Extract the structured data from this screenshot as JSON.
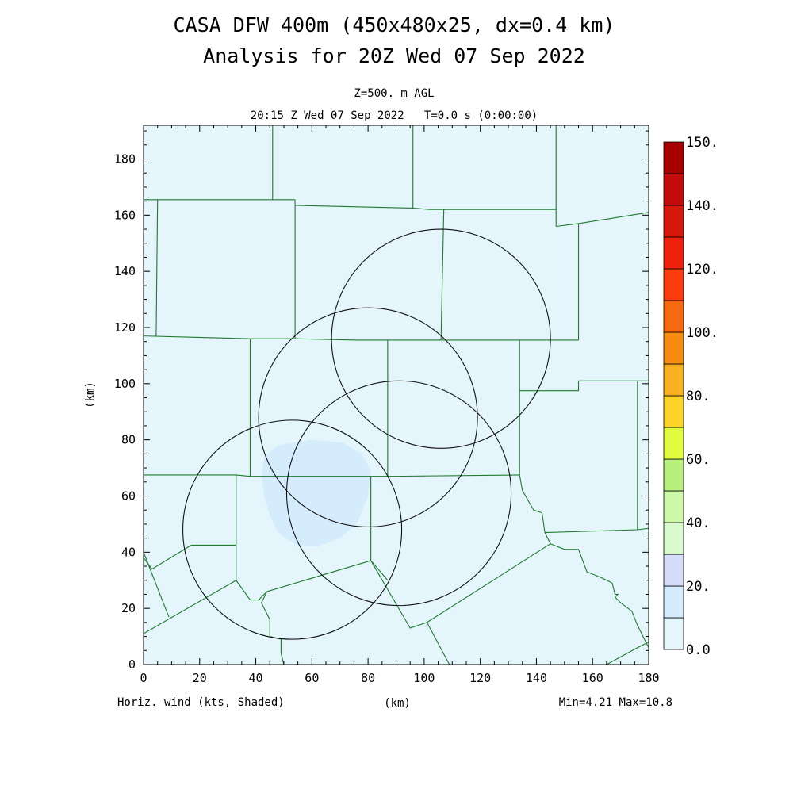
{
  "title": {
    "line1": "CASA DFW 400m (450x480x25, dx=0.4 km)",
    "line2": "Analysis for 20Z Wed 07 Sep 2022"
  },
  "subtitle": {
    "level": "Z=500. m AGL",
    "time": "20:15 Z Wed 07 Sep 2022   T=0.0 s (0:00:00)"
  },
  "footer": {
    "field": "Horiz. wind (kts, Shaded)",
    "xunits": "(km)",
    "minmax": "Min=4.21 Max=10.8"
  },
  "chart_data": {
    "type": "heatmap",
    "xlabel": "(km)",
    "ylabel": "(km)",
    "xlim": [
      0,
      180
    ],
    "ylim": [
      0,
      192
    ],
    "xticks": [
      0,
      20,
      40,
      60,
      80,
      100,
      120,
      140,
      160,
      180
    ],
    "yticks": [
      0,
      20,
      40,
      60,
      80,
      100,
      120,
      140,
      160,
      180
    ],
    "field": "Horiz. wind (kts)",
    "min": 4.21,
    "max": 10.8,
    "colorbar": {
      "range": [
        0,
        150
      ],
      "labels": [
        "0.0",
        "20.",
        "40.",
        "60.",
        "80.",
        "100.",
        "120.",
        "140.",
        "150."
      ],
      "colors": [
        "#e4f6fc",
        "#d4ecfc",
        "#d4dcfa",
        "#d8facc",
        "#ccf8a8",
        "#b8f080",
        "#e0fc3c",
        "#fcd428",
        "#f8b020",
        "#f88c10",
        "#f86810",
        "#fc3c0c",
        "#f0200c",
        "#d8180c",
        "#c40c0c",
        "#a80000"
      ]
    },
    "shaded_region": {
      "level": "10-20 kts",
      "color": "#d4ecfc",
      "polygon_km": [
        [
          43,
          74
        ],
        [
          48,
          78
        ],
        [
          60,
          80
        ],
        [
          71,
          79
        ],
        [
          78,
          75
        ],
        [
          81,
          69
        ],
        [
          80,
          60
        ],
        [
          76,
          50
        ],
        [
          70,
          45
        ],
        [
          62,
          42
        ],
        [
          55,
          42
        ],
        [
          48,
          47
        ],
        [
          45,
          53
        ],
        [
          43,
          60
        ],
        [
          42,
          67
        ]
      ]
    },
    "radar_range_rings": [
      {
        "center": [
          53,
          48
        ],
        "radius": 39
      },
      {
        "center": [
          80,
          88
        ],
        "radius": 39
      },
      {
        "center": [
          106,
          116
        ],
        "radius": 39
      },
      {
        "center": [
          91,
          61
        ],
        "radius": 40
      }
    ],
    "county_boundaries": [
      [
        [
          0,
          165.5
        ],
        [
          46,
          165.5
        ]
      ],
      [
        [
          46,
          192
        ],
        [
          46,
          165.5
        ],
        [
          54,
          165.5
        ]
      ],
      [
        [
          54,
          165.5
        ],
        [
          54,
          163.5
        ],
        [
          96,
          162.5
        ],
        [
          102,
          162
        ],
        [
          126,
          162
        ],
        [
          147,
          162
        ]
      ],
      [
        [
          96,
          192
        ],
        [
          96,
          162.5
        ]
      ],
      [
        [
          147,
          192
        ],
        [
          147,
          156
        ]
      ],
      [
        [
          147,
          156
        ],
        [
          155,
          157
        ],
        [
          180,
          161
        ]
      ],
      [
        [
          155,
          157
        ],
        [
          155,
          115.5
        ]
      ],
      [
        [
          5,
          165.5
        ],
        [
          4.5,
          117
        ]
      ],
      [
        [
          0,
          117
        ],
        [
          38,
          116
        ],
        [
          54,
          116
        ],
        [
          76,
          115.5
        ],
        [
          87,
          115.5
        ],
        [
          134,
          115.5
        ],
        [
          155,
          115.5
        ]
      ],
      [
        [
          54,
          163.5
        ],
        [
          54,
          116
        ]
      ],
      [
        [
          107,
          162
        ],
        [
          106,
          115.5
        ]
      ],
      [
        [
          38,
          116
        ],
        [
          38,
          67
        ],
        [
          33,
          67.5
        ],
        [
          0,
          67.5
        ]
      ],
      [
        [
          87,
          115.5
        ],
        [
          87,
          67
        ],
        [
          38,
          67
        ]
      ],
      [
        [
          87,
          67
        ],
        [
          134,
          67.5
        ]
      ],
      [
        [
          134,
          115.5
        ],
        [
          134,
          67.5
        ]
      ],
      [
        [
          134,
          97.5
        ],
        [
          155,
          97.5
        ],
        [
          155,
          101
        ],
        [
          176,
          101
        ],
        [
          180,
          101
        ]
      ],
      [
        [
          176,
          101
        ],
        [
          176,
          48
        ]
      ],
      [
        [
          134,
          67.5
        ],
        [
          135,
          62
        ],
        [
          139,
          55
        ],
        [
          142,
          54
        ],
        [
          143,
          47
        ],
        [
          176,
          48
        ],
        [
          180,
          48.5
        ]
      ],
      [
        [
          33,
          67.5
        ],
        [
          33,
          30
        ]
      ],
      [
        [
          17,
          42.5
        ],
        [
          33,
          42.5
        ]
      ],
      [
        [
          0,
          38
        ],
        [
          3,
          34
        ],
        [
          17,
          42.5
        ]
      ],
      [
        [
          0,
          11
        ],
        [
          33,
          30
        ]
      ],
      [
        [
          33,
          30
        ],
        [
          38,
          23
        ],
        [
          41,
          23
        ],
        [
          44,
          26
        ]
      ],
      [
        [
          44,
          26
        ],
        [
          81,
          37
        ]
      ],
      [
        [
          81,
          67
        ],
        [
          81,
          37
        ],
        [
          87,
          30
        ]
      ],
      [
        [
          81,
          37
        ],
        [
          95,
          13
        ],
        [
          101,
          15
        ],
        [
          145,
          43
        ]
      ],
      [
        [
          143,
          47
        ],
        [
          145,
          43
        ]
      ],
      [
        [
          0,
          40
        ],
        [
          9,
          17
        ]
      ],
      [
        [
          44,
          26
        ],
        [
          42,
          22
        ],
        [
          45,
          16
        ],
        [
          45,
          10
        ],
        [
          49,
          9
        ],
        [
          49,
          4
        ],
        [
          50,
          0
        ]
      ],
      [
        [
          101,
          15
        ],
        [
          109,
          0
        ]
      ],
      [
        [
          145,
          43
        ],
        [
          150,
          41
        ],
        [
          155,
          41
        ],
        [
          158,
          33
        ],
        [
          163,
          31
        ],
        [
          167,
          29
        ],
        [
          168,
          25
        ],
        [
          169,
          25
        ],
        [
          168,
          24
        ],
        [
          170,
          22
        ],
        [
          174,
          19
        ],
        [
          176,
          14
        ],
        [
          178,
          10
        ],
        [
          180,
          6
        ]
      ],
      [
        [
          165,
          0
        ],
        [
          176,
          6
        ],
        [
          180,
          8
        ]
      ]
    ]
  }
}
